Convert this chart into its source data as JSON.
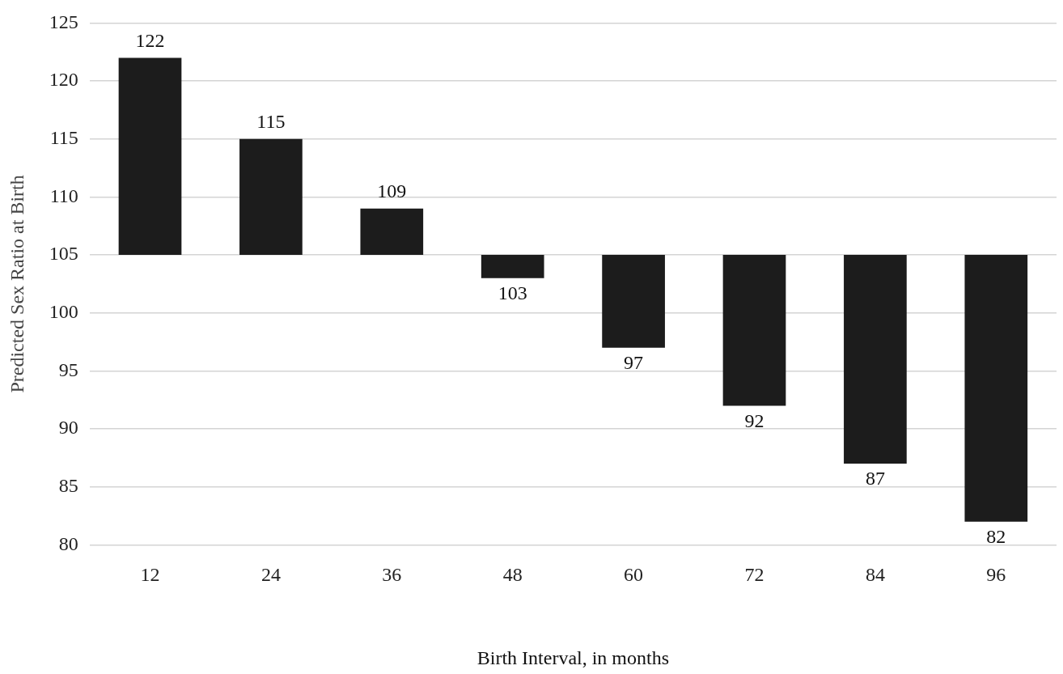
{
  "chart_data": {
    "type": "bar",
    "xlabel": "Birth Interval, in months",
    "ylabel": "Predicted Sex Ratio at Birth",
    "categories": [
      "12",
      "24",
      "36",
      "48",
      "60",
      "72",
      "84",
      "96"
    ],
    "base": [
      105,
      105,
      105,
      105,
      105,
      105,
      105,
      105
    ],
    "values": [
      17,
      10,
      4,
      -2,
      -8,
      -13,
      -18,
      -23
    ],
    "value_labels": [
      "122",
      "115",
      "109",
      "103",
      "97",
      "92",
      "87",
      "82"
    ],
    "color": "#1c1c1c",
    "ylim": [
      80,
      125
    ],
    "yticks": [
      80,
      85,
      90,
      95,
      100,
      105,
      110,
      115,
      120,
      125
    ],
    "grid": "y",
    "legend": false
  }
}
